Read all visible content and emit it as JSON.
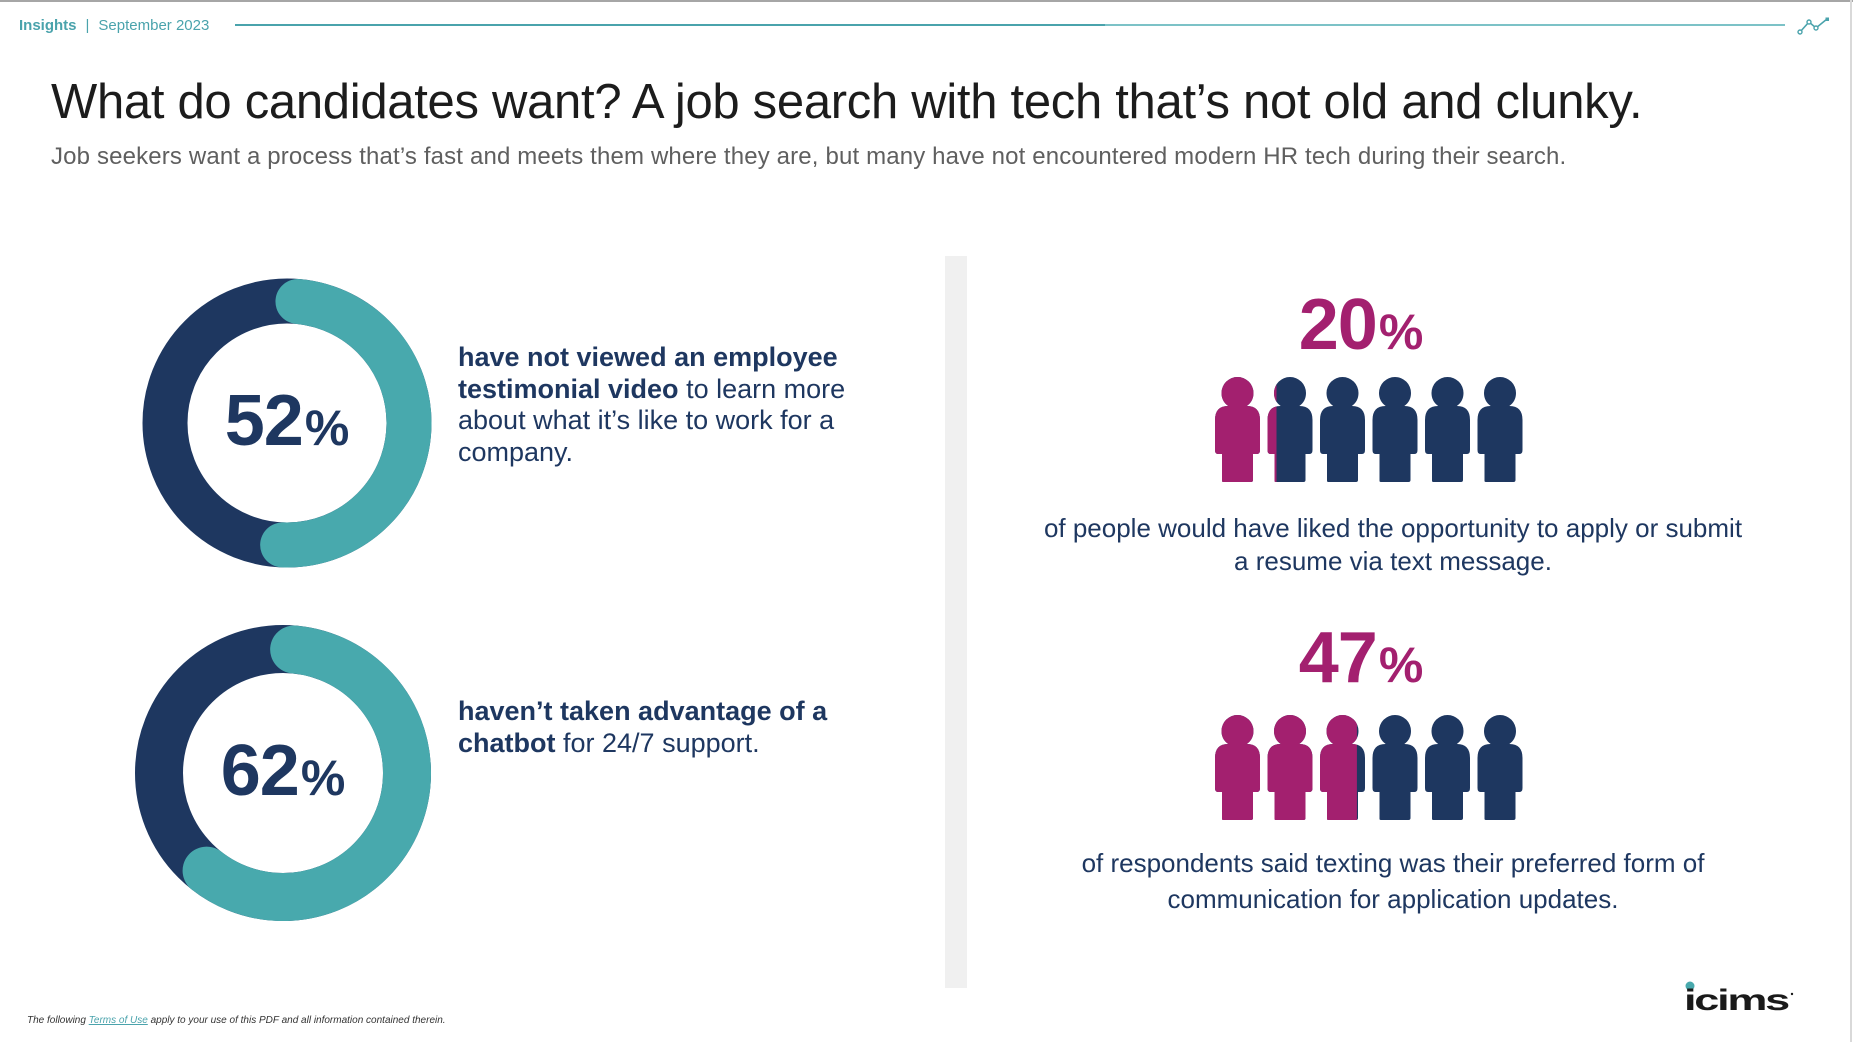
{
  "header": {
    "section": "Insights",
    "separator": "|",
    "date": "September 2023",
    "icon": "trend-line-icon"
  },
  "title": "What do candidates want? A job search with tech that’s not old and clunky.",
  "subtitle": "Job seekers want a process that’s fast and meets them where they are, but many have not encountered modern HR tech during their search.",
  "colors": {
    "navy": "#1e3760",
    "teal": "#48a9ad",
    "magenta": "#a3206f",
    "divider": "#f0f0f0"
  },
  "stats_left": [
    {
      "value": 52,
      "number": "52",
      "percent_sign": "%",
      "bold_text": "have not viewed an employee testimonial video",
      "regular_text": " to learn more about what it’s like to work for a company."
    },
    {
      "value": 62,
      "number": "62",
      "percent_sign": "%",
      "bold_text": "haven’t taken advantage of a chatbot",
      "regular_text": " for 24/7 support."
    }
  ],
  "stats_right": [
    {
      "value": 20,
      "number": "20",
      "percent_sign": "%",
      "people_count": 6,
      "caption": "of people would have liked the opportunity to apply or submit a resume via text message."
    },
    {
      "value": 47,
      "number": "47",
      "percent_sign": "%",
      "people_count": 6,
      "caption": "of respondents said texting was their preferred form of communication for application updates."
    }
  ],
  "footer": {
    "prefix": "The following ",
    "link": "Terms of Use",
    "suffix": " apply to your use of this PDF and all information contained therein."
  },
  "logo": {
    "text": "icims"
  }
}
